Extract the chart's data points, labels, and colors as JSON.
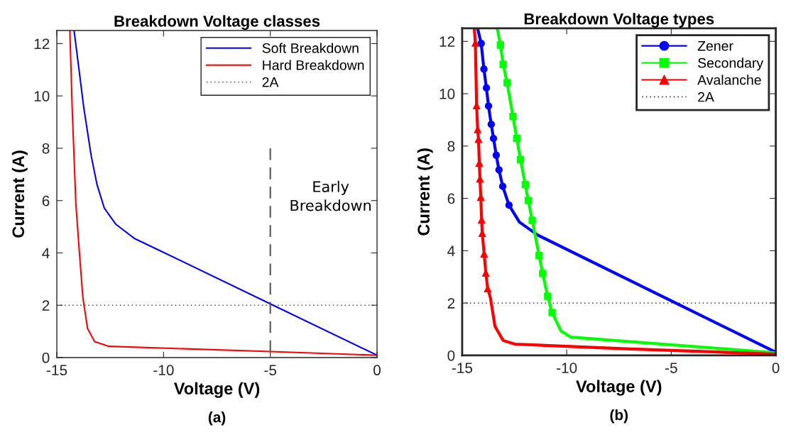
{
  "chart_data": [
    {
      "type": "line",
      "title": "Breakdown Voltage classes",
      "xlabel": "Voltage (V)",
      "ylabel": "Current (A)",
      "xlim": [
        -15,
        0
      ],
      "xticks": [
        -15,
        -10,
        -5,
        0
      ],
      "ylim": [
        0,
        12.5
      ],
      "yticks": [
        0,
        2,
        4,
        6,
        8,
        10,
        12
      ],
      "grid": false,
      "legend": "top right",
      "series": [
        {
          "name": "Soft Breakdown",
          "color": "#0000ff",
          "x": [
            -14.19,
            -13.73,
            -13.39,
            -13.12,
            -12.78,
            -12.23,
            -11.34,
            -10,
            -5.02,
            0
          ],
          "values": [
            12.49,
            9.51,
            7.71,
            6.62,
            5.72,
            5.09,
            4.54,
            4.02,
            2.06,
            0.09
          ]
        },
        {
          "name": "Hard Breakdown",
          "color": "#ff0000",
          "x": [
            -14.39,
            -14.28,
            -14.11,
            -13.95,
            -13.78,
            -13.56,
            -13.23,
            -12.56,
            -5,
            0
          ],
          "values": [
            12.49,
            9.51,
            5.9,
            4.09,
            2.29,
            1.11,
            0.61,
            0.43,
            0.23,
            0.09
          ]
        },
        {
          "color": "#555555",
          "line_style": "dashed",
          "x": [
            -5,
            -5
          ],
          "values": [
            0,
            8
          ]
        }
      ],
      "ref_lines": [
        {
          "axis": "y",
          "value": 2,
          "label": "2A",
          "color": "#444444",
          "line_style": "dotted"
        }
      ],
      "annotations": [
        "Early\nBreakdown",
        "(a)"
      ]
    },
    {
      "type": "line",
      "title": "Breakdown Voltage types",
      "xlabel": "Voltage (V)",
      "ylabel": "Current (A)",
      "xlim": [
        -15,
        0
      ],
      "xticks": [
        -15,
        -10,
        -5,
        0
      ],
      "ylim": [
        0,
        12.5
      ],
      "yticks": [
        0,
        2,
        4,
        6,
        8,
        10,
        12
      ],
      "grid": false,
      "legend": "top right",
      "series": [
        {
          "color": "#0000ff",
          "x": [
            -14.26,
            -14.09,
            -13.96,
            -13.84,
            -13.74,
            -13.61,
            -13.5,
            -13.37,
            -13.24,
            -13.06,
            -12.76,
            -12.26,
            -11.37,
            -4.94,
            0
          ],
          "values": [
            12.49,
            11.92,
            10.94,
            10.22,
            9.53,
            8.83,
            8.29,
            7.65,
            7.09,
            6.46,
            5.74,
            5.09,
            4.59,
            2.06,
            0.12
          ]
        },
        {
          "name": "Zener",
          "type": "scatter",
          "marker": "circle",
          "color": "#0000ff",
          "x": [
            -14.09,
            -13.96,
            -13.84,
            -13.74,
            -13.61,
            -13.5,
            -13.37,
            -13.24,
            -13.06,
            -12.76
          ],
          "values": [
            11.92,
            10.94,
            10.22,
            9.53,
            8.83,
            8.29,
            7.65,
            7.09,
            6.46,
            5.74
          ]
        },
        {
          "color": "#00ff00",
          "x": [
            -13.32,
            -13.17,
            -13.04,
            -12.85,
            -12.57,
            -12.39,
            -12.21,
            -11.98,
            -11.84,
            -11.65,
            -11.32,
            -11.15,
            -10.91,
            -10.7,
            -10.27,
            -9.82,
            0
          ],
          "values": [
            12.49,
            11.86,
            11.12,
            10.42,
            9.13,
            8.29,
            7.48,
            6.53,
            5.92,
            5.16,
            3.82,
            3.13,
            2.26,
            1.64,
            0.93,
            0.7,
            0.1
          ]
        },
        {
          "name": "Secondary",
          "type": "scatter",
          "marker": "square",
          "color": "#00ff00",
          "x": [
            -13.17,
            -13.04,
            -12.85,
            -12.57,
            -12.39,
            -12.21,
            -11.98,
            -11.84,
            -11.65,
            -11.32,
            -11.15,
            -10.91,
            -10.7
          ],
          "values": [
            11.86,
            11.12,
            10.42,
            9.13,
            8.29,
            7.48,
            6.53,
            5.92,
            5.16,
            3.82,
            3.13,
            2.26,
            1.64
          ]
        },
        {
          "color": "#ff0000",
          "x": [
            -14.42,
            -14.37,
            -14.31,
            -14.26,
            -14.22,
            -14.18,
            -14.15,
            -14.11,
            -14.07,
            -14.04,
            -13.95,
            -13.87,
            -13.78,
            -13.65,
            -13.43,
            -13.04,
            -12.48,
            -7.16,
            0
          ],
          "values": [
            12.49,
            11.95,
            9.56,
            8.64,
            8.27,
            7.36,
            6.76,
            6.06,
            5.19,
            4.68,
            3.89,
            3.16,
            2.56,
            2.2,
            1.11,
            0.57,
            0.43,
            0.25,
            0.05
          ]
        },
        {
          "name": "Avalanche",
          "type": "scatter",
          "marker": "triangle",
          "color": "#ff0000",
          "x": [
            -14.37,
            -14.31,
            -14.26,
            -14.22,
            -14.18,
            -14.15,
            -14.11,
            -14.07,
            -14.04,
            -13.95,
            -13.87,
            -13.78
          ],
          "values": [
            11.95,
            9.56,
            8.64,
            8.27,
            7.36,
            6.76,
            6.06,
            5.19,
            4.68,
            3.89,
            3.16,
            2.56
          ]
        }
      ],
      "ref_lines": [
        {
          "axis": "y",
          "value": 2,
          "label": "2A",
          "color": "#000000",
          "line_style": "dotted"
        }
      ],
      "annotations": [
        "(b)"
      ]
    }
  ]
}
